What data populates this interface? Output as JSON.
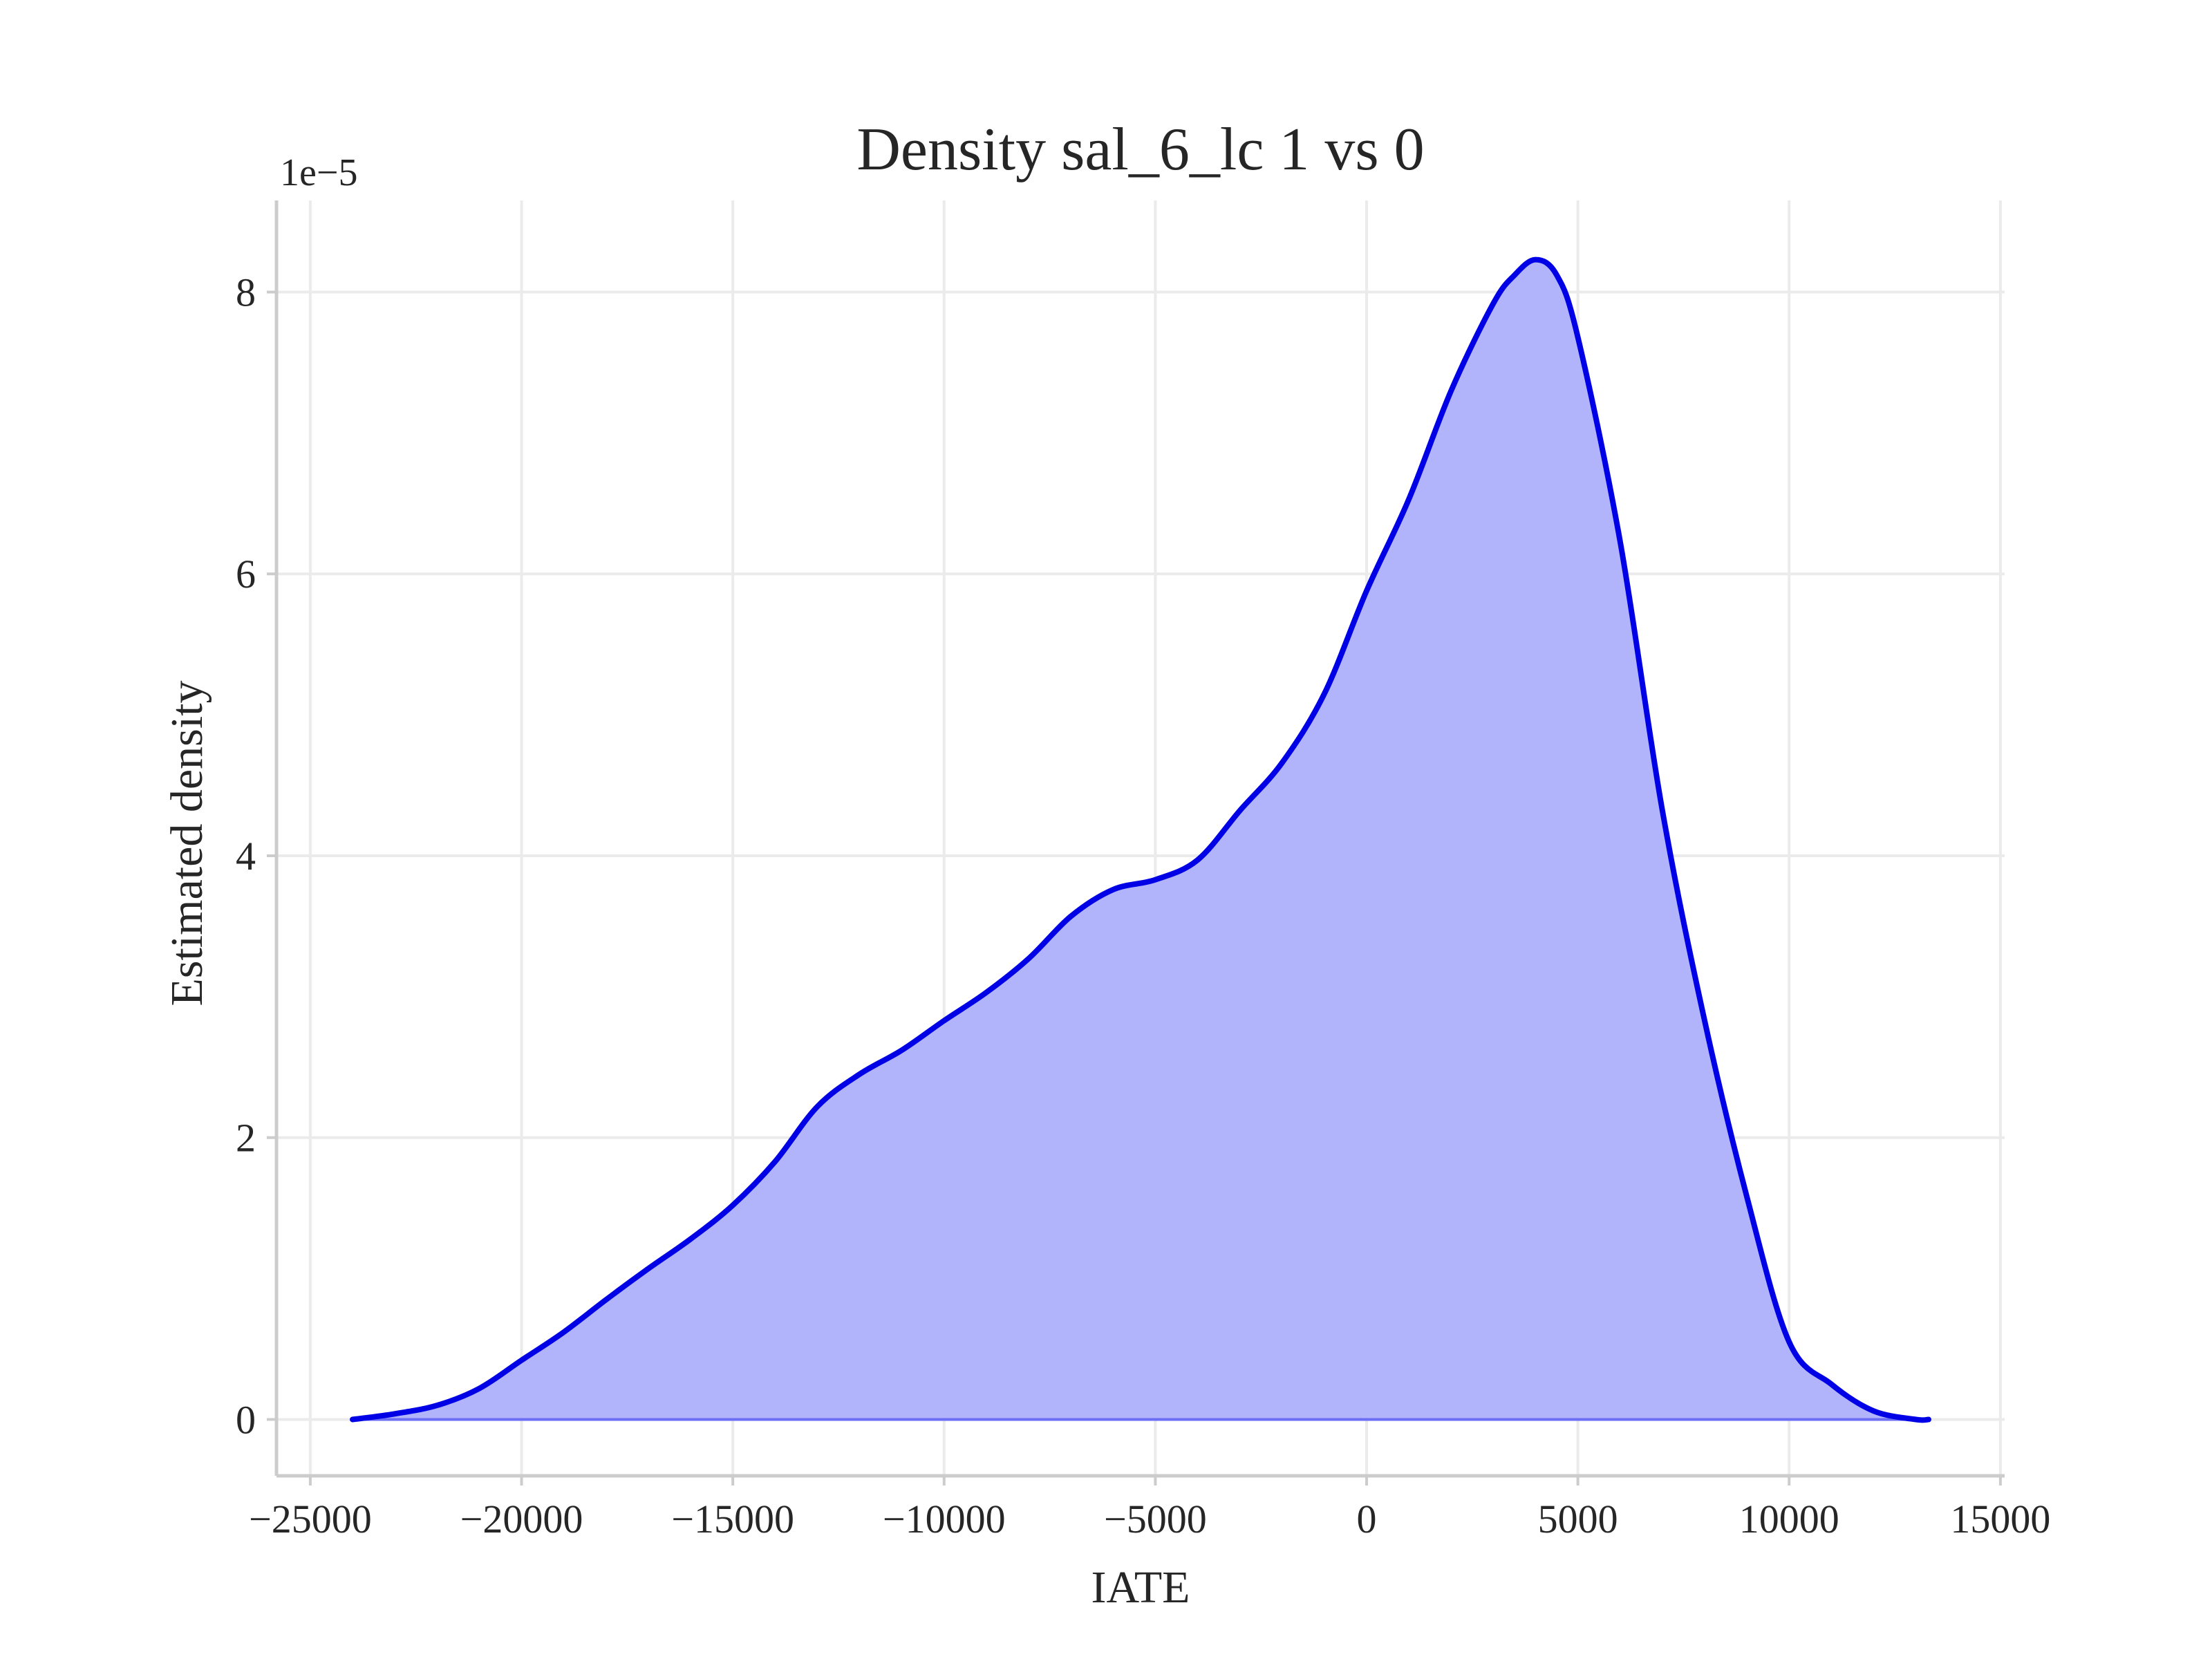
{
  "chart_data": {
    "type": "area",
    "title": "Density sal_6_lc 1 vs 0",
    "xlabel": "IATE",
    "ylabel": "Estimated density",
    "y_offset_label": "1e−5",
    "xlim": [
      -25800,
      15100
    ],
    "ylim": [
      -0.4,
      8.65
    ],
    "xticks": [
      -25000,
      -20000,
      -15000,
      -10000,
      -5000,
      0,
      5000,
      10000,
      15000
    ],
    "xtick_labels": [
      "−25000",
      "−20000",
      "−15000",
      "−10000",
      "−5000",
      "0",
      "5000",
      "10000",
      "15000"
    ],
    "yticks": [
      0,
      2,
      4,
      6,
      8
    ],
    "ytick_labels": [
      "0",
      "2",
      "4",
      "6",
      "8"
    ],
    "grid": true,
    "line_color": "#0000e6",
    "fill_color": "#b1b3fb",
    "series": [
      {
        "x": [
          -24000,
          -23000,
          -22000,
          -21000,
          -20000,
          -19000,
          -18000,
          -17000,
          -16000,
          -15000,
          -14000,
          -13000,
          -12000,
          -11000,
          -10000,
          -9000,
          -8000,
          -7000,
          -6000,
          -5000,
          -4000,
          -3000,
          -2000,
          -1000,
          0,
          1000,
          2000,
          3000,
          3500,
          4000,
          4500,
          5000,
          6000,
          7000,
          8000,
          9000,
          10000,
          11000,
          12000,
          13000,
          13300
        ],
        "values": [
          0.0,
          0.04,
          0.1,
          0.22,
          0.42,
          0.62,
          0.85,
          1.07,
          1.28,
          1.52,
          1.83,
          2.22,
          2.45,
          2.62,
          2.83,
          3.03,
          3.27,
          3.57,
          3.76,
          3.83,
          3.97,
          4.32,
          4.66,
          5.15,
          5.88,
          6.53,
          7.3,
          7.92,
          8.12,
          8.23,
          8.12,
          7.68,
          6.23,
          4.32,
          2.83,
          1.58,
          0.55,
          0.25,
          0.06,
          0.0,
          0.0
        ]
      }
    ]
  }
}
